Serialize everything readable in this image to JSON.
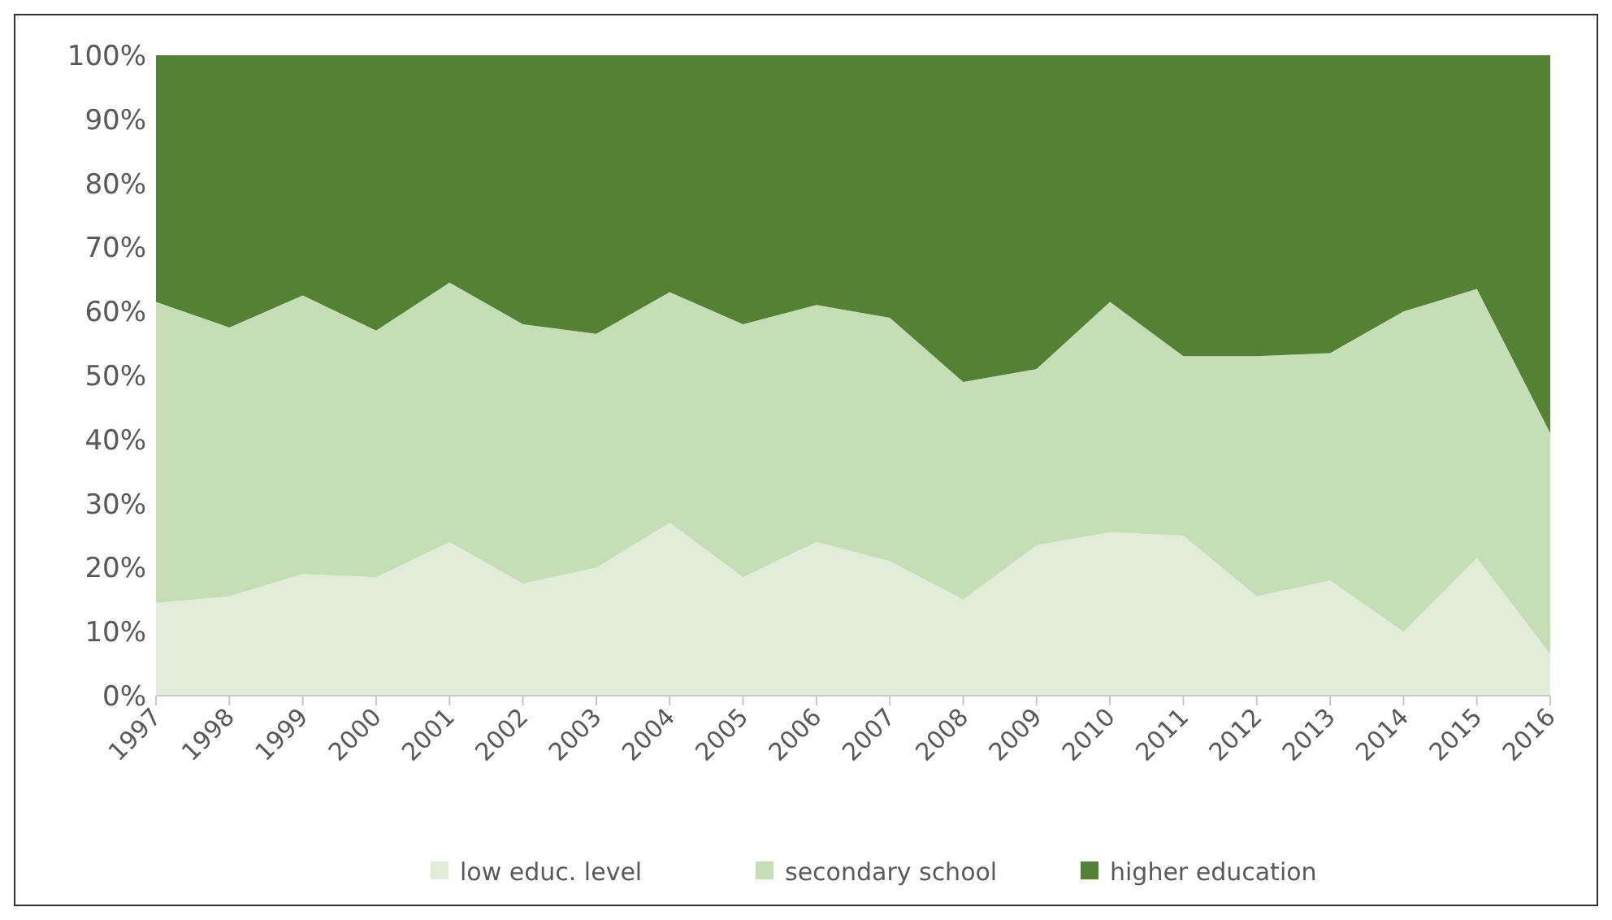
{
  "chart_data": {
    "type": "area",
    "stacked": true,
    "categories": [
      "1997",
      "1998",
      "1999",
      "2000",
      "2001",
      "2002",
      "2003",
      "2004",
      "2005",
      "2006",
      "2007",
      "2008",
      "2009",
      "2010",
      "2011",
      "2012",
      "2013",
      "2014",
      "2015",
      "2016"
    ],
    "series": [
      {
        "name": "low educ. level",
        "color": "#e2ecd9",
        "values": [
          14.5,
          15.5,
          19,
          18.5,
          24,
          17.5,
          20,
          27,
          18.5,
          24,
          21,
          15,
          23.5,
          25.5,
          25,
          15.5,
          18,
          10,
          21.5,
          6.5
        ]
      },
      {
        "name": "secondary school",
        "color": "#c5deb5",
        "values": [
          47,
          42,
          43.5,
          38.5,
          40.5,
          40.5,
          36.5,
          36,
          39.5,
          37,
          38,
          34,
          27.5,
          36,
          28,
          37.5,
          35.5,
          50,
          42,
          34.5
        ]
      },
      {
        "name": "higher education",
        "color": "#548235",
        "values": [
          38.5,
          42.5,
          37.5,
          43,
          35.5,
          42,
          43.5,
          37,
          42,
          39,
          41,
          51,
          49,
          38.5,
          47,
          47,
          46.5,
          40,
          36.5,
          59
        ]
      }
    ],
    "ylim": [
      0,
      100
    ],
    "yticks": [
      {
        "value": 0,
        "label": "0%"
      },
      {
        "value": 10,
        "label": "10%"
      },
      {
        "value": 20,
        "label": "20%"
      },
      {
        "value": 30,
        "label": "30%"
      },
      {
        "value": 40,
        "label": "40%"
      },
      {
        "value": 50,
        "label": "50%"
      },
      {
        "value": 60,
        "label": "60%"
      },
      {
        "value": 70,
        "label": "70%"
      },
      {
        "value": 80,
        "label": "80%"
      },
      {
        "value": 90,
        "label": "90%"
      },
      {
        "value": 100,
        "label": "100%"
      }
    ],
    "grid": false,
    "legend": "bottom"
  }
}
